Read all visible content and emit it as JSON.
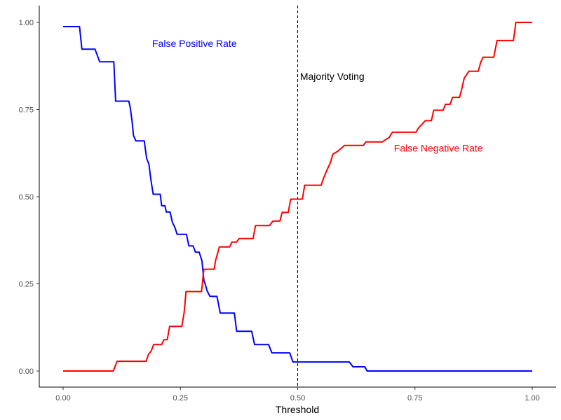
{
  "chart_data": {
    "type": "line",
    "title": "",
    "xlabel": "Threshold",
    "ylabel": "",
    "xlim": [
      0,
      1
    ],
    "ylim": [
      0,
      1
    ],
    "x_ticks": [
      0,
      0.25,
      0.5,
      0.75,
      1
    ],
    "y_ticks": [
      0,
      0.25,
      0.5,
      0.75,
      1
    ],
    "x_tick_labels": [
      "0.00",
      "0.25",
      "0.50",
      "0.75",
      "1.00"
    ],
    "y_tick_labels": [
      "0.00",
      "0.25",
      "0.50",
      "0.75",
      "1.00"
    ],
    "grid": false,
    "series": [
      {
        "name": "False Positive Rate",
        "color": "#0000ff",
        "points": [
          [
            0.0,
            0.988
          ],
          [
            0.035,
            0.988
          ],
          [
            0.04,
            0.923
          ],
          [
            0.068,
            0.923
          ],
          [
            0.078,
            0.887
          ],
          [
            0.108,
            0.887
          ],
          [
            0.112,
            0.774
          ],
          [
            0.14,
            0.774
          ],
          [
            0.143,
            0.756
          ],
          [
            0.147,
            0.717
          ],
          [
            0.15,
            0.676
          ],
          [
            0.155,
            0.66
          ],
          [
            0.173,
            0.66
          ],
          [
            0.178,
            0.61
          ],
          [
            0.183,
            0.593
          ],
          [
            0.187,
            0.55
          ],
          [
            0.192,
            0.507
          ],
          [
            0.207,
            0.507
          ],
          [
            0.21,
            0.474
          ],
          [
            0.217,
            0.474
          ],
          [
            0.22,
            0.456
          ],
          [
            0.228,
            0.456
          ],
          [
            0.233,
            0.426
          ],
          [
            0.238,
            0.413
          ],
          [
            0.243,
            0.392
          ],
          [
            0.263,
            0.392
          ],
          [
            0.268,
            0.359
          ],
          [
            0.277,
            0.359
          ],
          [
            0.282,
            0.341
          ],
          [
            0.29,
            0.341
          ],
          [
            0.296,
            0.316
          ],
          [
            0.3,
            0.26
          ],
          [
            0.303,
            0.249
          ],
          [
            0.307,
            0.23
          ],
          [
            0.313,
            0.214
          ],
          [
            0.328,
            0.214
          ],
          [
            0.335,
            0.166
          ],
          [
            0.365,
            0.166
          ],
          [
            0.37,
            0.114
          ],
          [
            0.402,
            0.114
          ],
          [
            0.408,
            0.076
          ],
          [
            0.438,
            0.076
          ],
          [
            0.445,
            0.052
          ],
          [
            0.483,
            0.052
          ],
          [
            0.49,
            0.026
          ],
          [
            0.61,
            0.026
          ],
          [
            0.618,
            0.012
          ],
          [
            0.643,
            0.012
          ],
          [
            0.648,
            0.0
          ],
          [
            1.0,
            0.0
          ]
        ]
      },
      {
        "name": "False Negative Rate",
        "color": "#ff0000",
        "points": [
          [
            0.0,
            0.0
          ],
          [
            0.107,
            0.0
          ],
          [
            0.115,
            0.028
          ],
          [
            0.177,
            0.028
          ],
          [
            0.182,
            0.048
          ],
          [
            0.188,
            0.058
          ],
          [
            0.193,
            0.076
          ],
          [
            0.21,
            0.076
          ],
          [
            0.215,
            0.09
          ],
          [
            0.222,
            0.09
          ],
          [
            0.227,
            0.128
          ],
          [
            0.253,
            0.128
          ],
          [
            0.258,
            0.168
          ],
          [
            0.262,
            0.228
          ],
          [
            0.295,
            0.228
          ],
          [
            0.3,
            0.292
          ],
          [
            0.322,
            0.292
          ],
          [
            0.325,
            0.317
          ],
          [
            0.328,
            0.331
          ],
          [
            0.333,
            0.356
          ],
          [
            0.355,
            0.356
          ],
          [
            0.36,
            0.37
          ],
          [
            0.37,
            0.37
          ],
          [
            0.375,
            0.38
          ],
          [
            0.405,
            0.38
          ],
          [
            0.41,
            0.417
          ],
          [
            0.44,
            0.417
          ],
          [
            0.447,
            0.43
          ],
          [
            0.462,
            0.43
          ],
          [
            0.467,
            0.455
          ],
          [
            0.48,
            0.455
          ],
          [
            0.485,
            0.493
          ],
          [
            0.51,
            0.493
          ],
          [
            0.515,
            0.533
          ],
          [
            0.55,
            0.533
          ],
          [
            0.555,
            0.553
          ],
          [
            0.563,
            0.578
          ],
          [
            0.57,
            0.598
          ],
          [
            0.575,
            0.622
          ],
          [
            0.585,
            0.63
          ],
          [
            0.6,
            0.647
          ],
          [
            0.64,
            0.647
          ],
          [
            0.645,
            0.657
          ],
          [
            0.68,
            0.657
          ],
          [
            0.695,
            0.67
          ],
          [
            0.702,
            0.685
          ],
          [
            0.752,
            0.685
          ],
          [
            0.758,
            0.698
          ],
          [
            0.772,
            0.718
          ],
          [
            0.785,
            0.718
          ],
          [
            0.79,
            0.748
          ],
          [
            0.81,
            0.748
          ],
          [
            0.815,
            0.765
          ],
          [
            0.825,
            0.765
          ],
          [
            0.83,
            0.785
          ],
          [
            0.845,
            0.785
          ],
          [
            0.85,
            0.81
          ],
          [
            0.855,
            0.84
          ],
          [
            0.86,
            0.85
          ],
          [
            0.865,
            0.86
          ],
          [
            0.885,
            0.86
          ],
          [
            0.89,
            0.885
          ],
          [
            0.895,
            0.9
          ],
          [
            0.918,
            0.9
          ],
          [
            0.925,
            0.948
          ],
          [
            0.96,
            0.948
          ],
          [
            0.965,
            1.0
          ],
          [
            1.0,
            1.0
          ]
        ]
      }
    ],
    "vline": {
      "x": 0.5,
      "style": "dashed"
    },
    "annotations": [
      {
        "text": "False Positive Rate",
        "x": 0.28,
        "y": 0.94,
        "color": "#0000ff",
        "anchor": "middle"
      },
      {
        "text": "Majority Voting",
        "x": 0.505,
        "y": 0.845,
        "color": "#000000",
        "anchor": "start"
      },
      {
        "text": "False Negative Rate",
        "x": 0.8,
        "y": 0.64,
        "color": "#ff0000",
        "anchor": "middle"
      }
    ]
  }
}
